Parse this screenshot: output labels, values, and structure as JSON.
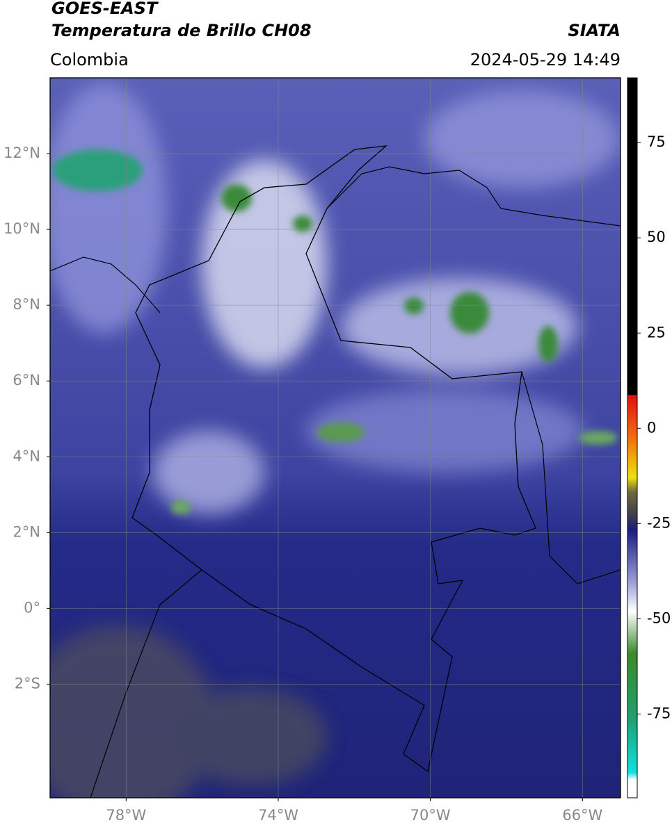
{
  "header": {
    "title": "GOES-EAST",
    "subtitle": "Temperatura de Brillo CH08",
    "source": "SIATA",
    "region": "Colombia",
    "datetime": "2024-05-29 14:49"
  },
  "map": {
    "xlim": [
      -80,
      -65
    ],
    "ylim": [
      -5,
      14
    ],
    "xticks": [
      {
        "value": -78,
        "label": "78°W"
      },
      {
        "value": -74,
        "label": "74°W"
      },
      {
        "value": -70,
        "label": "70°W"
      },
      {
        "value": -66,
        "label": "66°W"
      }
    ],
    "yticks": [
      {
        "value": 12,
        "label": "12°N"
      },
      {
        "value": 10,
        "label": "10°N"
      },
      {
        "value": 8,
        "label": "8°N"
      },
      {
        "value": 6,
        "label": "6°N"
      },
      {
        "value": 4,
        "label": "4°N"
      },
      {
        "value": 2,
        "label": "2°N"
      },
      {
        "value": 0,
        "label": "0°"
      },
      {
        "value": -2,
        "label": "2°S"
      }
    ],
    "grid": true
  },
  "colorbar": {
    "lim": [
      -97,
      92
    ],
    "ticks": [
      75,
      50,
      25,
      0,
      -25,
      -50,
      -75
    ]
  }
}
